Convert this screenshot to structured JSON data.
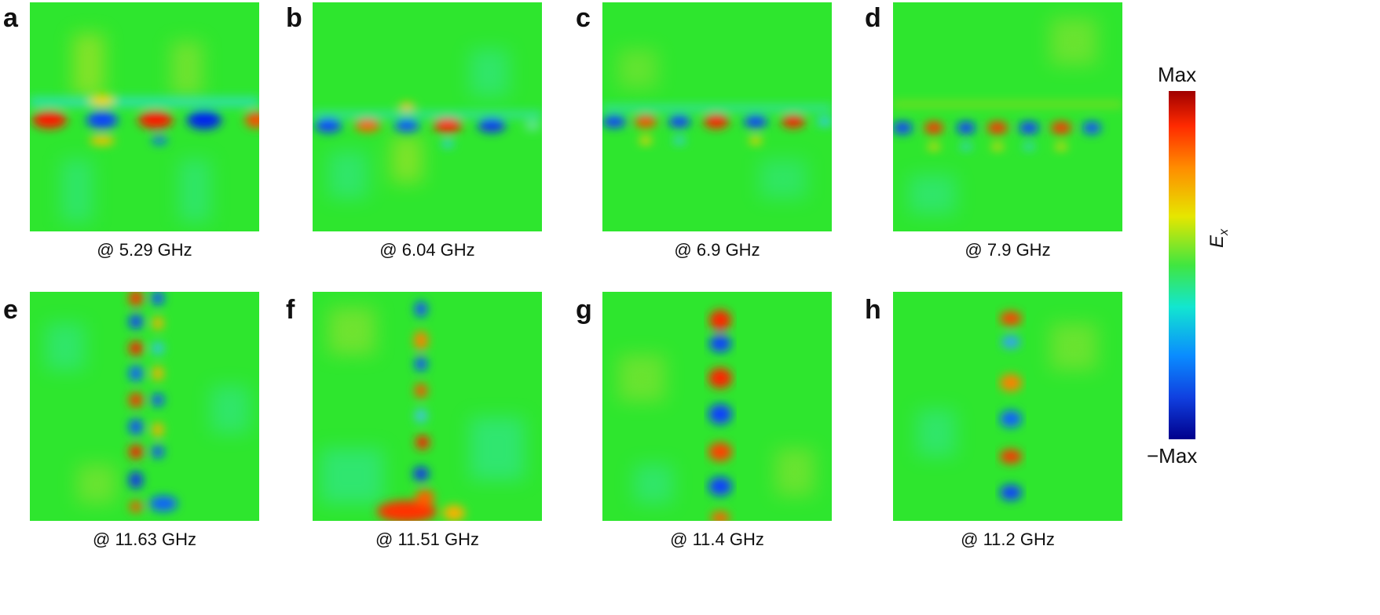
{
  "panels": [
    {
      "label": "a",
      "caption": "@ 5.29 GHz"
    },
    {
      "label": "b",
      "caption": "@ 6.04 GHz"
    },
    {
      "label": "c",
      "caption": "@ 6.9 GHz"
    },
    {
      "label": "d",
      "caption": "@ 7.9 GHz"
    },
    {
      "label": "e",
      "caption": "@ 11.63 GHz"
    },
    {
      "label": "f",
      "caption": "@ 11.51 GHz"
    },
    {
      "label": "g",
      "caption": "@ 11.4 GHz"
    },
    {
      "label": "h",
      "caption": "@ 11.2 GHz"
    }
  ],
  "colorbar": {
    "max_label": "Max",
    "min_label": "−Max",
    "axis_label": "E",
    "axis_subscript": "x"
  },
  "colors": {
    "max": "#a00000",
    "zero": "#40e640",
    "min": "#00008c"
  }
}
